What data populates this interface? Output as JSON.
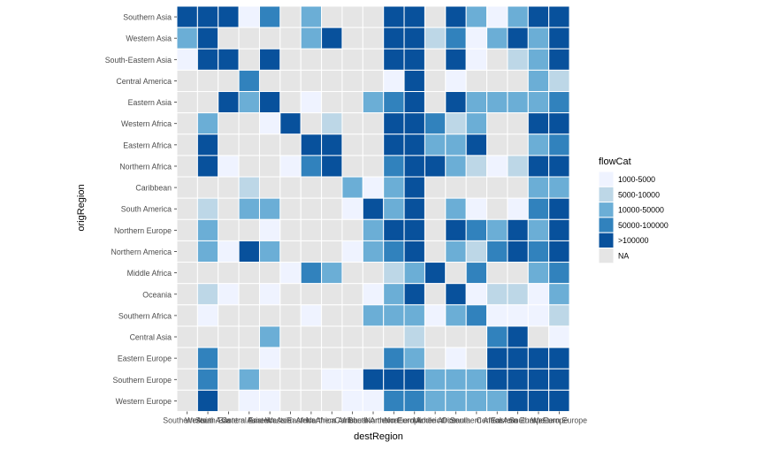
{
  "chart_data": {
    "type": "heatmap",
    "title": "",
    "xlabel": "destRegion",
    "ylabel": "origRegion",
    "x_categories": [
      "Southern Asia",
      "Western Asia",
      "South-Eastern Asia",
      "Central America",
      "Eastern Asia",
      "Western Africa",
      "Eastern Africa",
      "Northern Africa",
      "Caribbean",
      "South America",
      "Northern Europe",
      "Northern America",
      "Middle Africa",
      "Oceania",
      "Southern Africa",
      "Central Asia",
      "Eastern Europe",
      "Southern Europe",
      "Western Europe"
    ],
    "y_categories": [
      "Southern Asia",
      "Western Asia",
      "South-Eastern Asia",
      "Central America",
      "Eastern Asia",
      "Western Africa",
      "Eastern Africa",
      "Northern Africa",
      "Caribbean",
      "South America",
      "Northern Europe",
      "Northern America",
      "Middle Africa",
      "Oceania",
      "Southern Africa",
      "Central Asia",
      "Eastern Europe",
      "Southern Europe",
      "Western Europe"
    ],
    "legend": {
      "title": "flowCat",
      "position": "right",
      "categories": [
        "1000-5000",
        "5000-10000",
        "10000-50000",
        "50000-100000",
        ">100000",
        "NA"
      ]
    },
    "colors": {
      "1000-5000": "#eff3ff",
      "5000-10000": "#bdd7e7",
      "10000-50000": "#6baed6",
      "50000-100000": "#3182bd",
      ">100000": "#08519c",
      "NA": "#e5e5e5",
      "grid_line": "#ffffff",
      "axis_text": "#4d4d4d",
      "title_text": "#000000"
    },
    "matrix": [
      [
        ">100000",
        ">100000",
        ">100000",
        "1000-5000",
        "50000-100000",
        "NA",
        "10000-50000",
        "NA",
        "NA",
        "NA",
        ">100000",
        ">100000",
        "NA",
        ">100000",
        "10000-50000",
        "1000-5000",
        "10000-50000",
        ">100000",
        ">100000"
      ],
      [
        "10000-50000",
        ">100000",
        "NA",
        "NA",
        "NA",
        "NA",
        "10000-50000",
        ">100000",
        "NA",
        "NA",
        ">100000",
        ">100000",
        "5000-10000",
        "50000-100000",
        "1000-5000",
        "10000-50000",
        ">100000",
        "10000-50000",
        ">100000"
      ],
      [
        "1000-5000",
        ">100000",
        ">100000",
        "NA",
        ">100000",
        "NA",
        "NA",
        "NA",
        "NA",
        "NA",
        ">100000",
        ">100000",
        "NA",
        ">100000",
        "1000-5000",
        "NA",
        "5000-10000",
        "10000-50000",
        ">100000"
      ],
      [
        "NA",
        "NA",
        "NA",
        "50000-100000",
        "NA",
        "NA",
        "NA",
        "NA",
        "NA",
        "NA",
        "1000-5000",
        ">100000",
        "NA",
        "1000-5000",
        "NA",
        "NA",
        "NA",
        "10000-50000",
        "5000-10000"
      ],
      [
        "NA",
        "NA",
        ">100000",
        "10000-50000",
        ">100000",
        "NA",
        "1000-5000",
        "NA",
        "NA",
        "10000-50000",
        "50000-100000",
        ">100000",
        "NA",
        ">100000",
        "10000-50000",
        "10000-50000",
        "10000-50000",
        "10000-50000",
        "50000-100000"
      ],
      [
        "NA",
        "10000-50000",
        "NA",
        "NA",
        "1000-5000",
        ">100000",
        "NA",
        "5000-10000",
        "NA",
        "NA",
        ">100000",
        ">100000",
        "50000-100000",
        "5000-10000",
        "10000-50000",
        "NA",
        "NA",
        ">100000",
        ">100000"
      ],
      [
        "NA",
        ">100000",
        "NA",
        "NA",
        "NA",
        "NA",
        ">100000",
        ">100000",
        "NA",
        "NA",
        ">100000",
        ">100000",
        "10000-50000",
        "10000-50000",
        ">100000",
        "NA",
        "NA",
        "10000-50000",
        "50000-100000"
      ],
      [
        "NA",
        ">100000",
        "1000-5000",
        "NA",
        "NA",
        "1000-5000",
        "50000-100000",
        ">100000",
        "NA",
        "NA",
        "50000-100000",
        ">100000",
        ">100000",
        "10000-50000",
        "5000-10000",
        "1000-5000",
        "5000-10000",
        ">100000",
        ">100000"
      ],
      [
        "NA",
        "NA",
        "NA",
        "5000-10000",
        "NA",
        "NA",
        "NA",
        "NA",
        "10000-50000",
        "1000-5000",
        "10000-50000",
        ">100000",
        "NA",
        "NA",
        "NA",
        "NA",
        "NA",
        "10000-50000",
        "10000-50000"
      ],
      [
        "NA",
        "5000-10000",
        "NA",
        "10000-50000",
        "10000-50000",
        "NA",
        "NA",
        "NA",
        "1000-5000",
        ">100000",
        "10000-50000",
        ">100000",
        "NA",
        "10000-50000",
        "1000-5000",
        "NA",
        "1000-5000",
        "50000-100000",
        ">100000"
      ],
      [
        "NA",
        "10000-50000",
        "NA",
        "NA",
        "1000-5000",
        "NA",
        "NA",
        "NA",
        "NA",
        "10000-50000",
        ">100000",
        ">100000",
        "NA",
        ">100000",
        "50000-100000",
        "10000-50000",
        ">100000",
        "10000-50000",
        ">100000"
      ],
      [
        "NA",
        "10000-50000",
        "1000-5000",
        ">100000",
        "10000-50000",
        "NA",
        "NA",
        "NA",
        "1000-5000",
        "10000-50000",
        "50000-100000",
        ">100000",
        "NA",
        "10000-50000",
        "5000-10000",
        "50000-100000",
        ">100000",
        "50000-100000",
        ">100000"
      ],
      [
        "NA",
        "NA",
        "NA",
        "NA",
        "NA",
        "1000-5000",
        "50000-100000",
        "10000-50000",
        "NA",
        "NA",
        "5000-10000",
        "10000-50000",
        ">100000",
        "NA",
        "50000-100000",
        "NA",
        "NA",
        "10000-50000",
        "50000-100000"
      ],
      [
        "NA",
        "5000-10000",
        "1000-5000",
        "NA",
        "1000-5000",
        "NA",
        "NA",
        "NA",
        "NA",
        "1000-5000",
        "10000-50000",
        ">100000",
        "NA",
        ">100000",
        "1000-5000",
        "5000-10000",
        "5000-10000",
        "1000-5000",
        "10000-50000"
      ],
      [
        "NA",
        "1000-5000",
        "NA",
        "NA",
        "NA",
        "NA",
        "1000-5000",
        "NA",
        "NA",
        "10000-50000",
        "10000-50000",
        "10000-50000",
        "1000-5000",
        "10000-50000",
        "50000-100000",
        "1000-5000",
        "1000-5000",
        "1000-5000",
        "5000-10000"
      ],
      [
        "NA",
        "NA",
        "NA",
        "NA",
        "10000-50000",
        "NA",
        "NA",
        "NA",
        "NA",
        "NA",
        "NA",
        "5000-10000",
        "NA",
        "NA",
        "NA",
        "50000-100000",
        ">100000",
        "NA",
        "1000-5000"
      ],
      [
        "NA",
        "50000-100000",
        "NA",
        "NA",
        "1000-5000",
        "NA",
        "NA",
        "NA",
        "NA",
        "NA",
        "50000-100000",
        "10000-50000",
        "NA",
        "1000-5000",
        "NA",
        ">100000",
        ">100000",
        ">100000",
        ">100000"
      ],
      [
        "NA",
        "50000-100000",
        "NA",
        "10000-50000",
        "NA",
        "NA",
        "NA",
        "1000-5000",
        "1000-5000",
        ">100000",
        ">100000",
        ">100000",
        "10000-50000",
        "10000-50000",
        "10000-50000",
        ">100000",
        ">100000",
        ">100000",
        ">100000"
      ],
      [
        "NA",
        ">100000",
        "NA",
        "1000-5000",
        "1000-5000",
        "NA",
        "NA",
        "NA",
        "1000-5000",
        "1000-5000",
        "50000-100000",
        "50000-100000",
        "10000-50000",
        "10000-50000",
        "10000-50000",
        "10000-50000",
        ">100000",
        ">100000",
        ">100000"
      ]
    ]
  }
}
